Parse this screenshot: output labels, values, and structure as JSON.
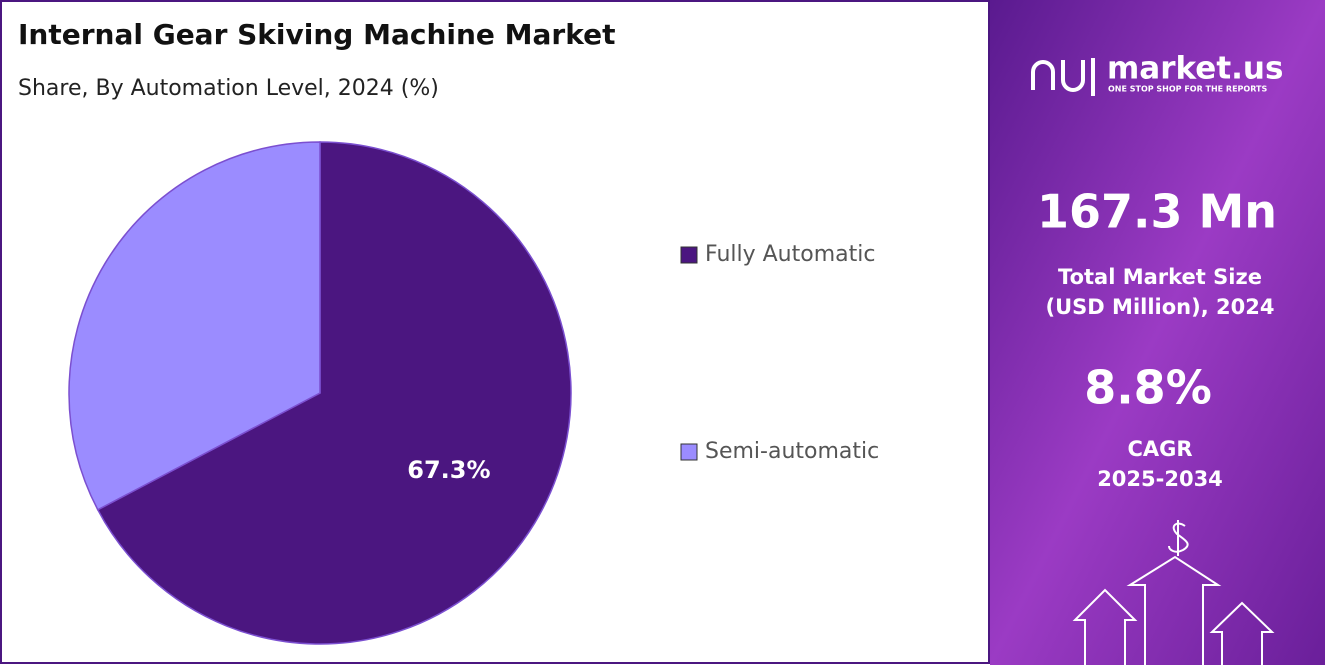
{
  "chart_data": {
    "type": "pie",
    "title": "Internal Gear Skiving Machine Market",
    "subtitle": "Share, By Automation Level, 2024 (%)",
    "categories": [
      "Fully Automatic",
      "Semi-automatic"
    ],
    "values": [
      67.3,
      32.7
    ],
    "value_labels": [
      "67.3%",
      null
    ],
    "colors": [
      "#4b1680",
      "#9b8cff"
    ],
    "legend": "right"
  },
  "panel": {
    "brand": "market.us",
    "tagline": "ONE STOP SHOP FOR THE REPORTS",
    "market_size": "167.3 Mn",
    "market_size_label": [
      "Total Market Size",
      "(USD Million), 2024"
    ],
    "cagr": "8.8%",
    "cagr_label": [
      "CAGR",
      "2025-2034"
    ]
  }
}
